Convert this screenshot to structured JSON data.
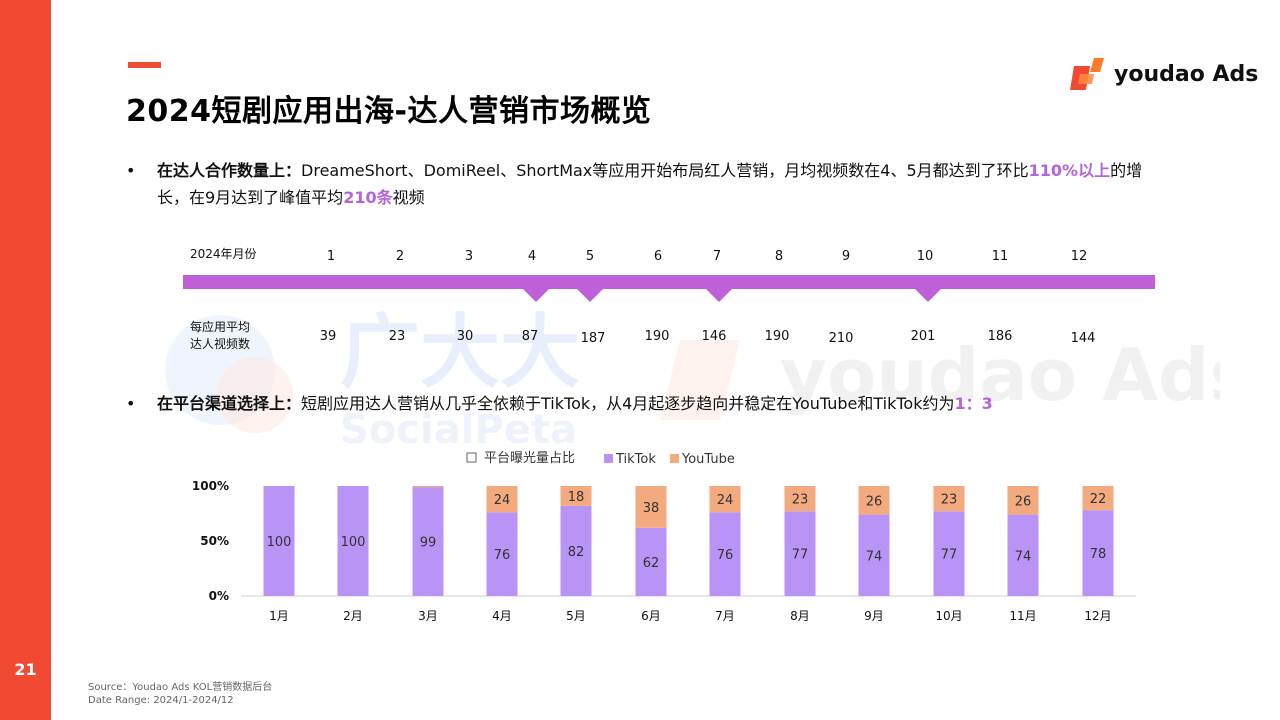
{
  "page": {
    "number": "21",
    "title": "2024短剧应用出海-达人营销市场概览",
    "brand": "youdao Ads"
  },
  "bullets": [
    {
      "lead": "在达人合作数量上：",
      "text_a": "DreameShort、DomiReel、ShortMax等应用开始布局红人营销，月均视频数在4、5月都达到了环比",
      "hl_a": "110%以上",
      "text_b": "的增长，在9月达到了峰值平均",
      "hl_b": "210条",
      "text_c": "视频"
    },
    {
      "lead": "在平台渠道选择上：",
      "text_a": "短剧应用达人营销从几乎全依赖于TikTok，从4月起逐步趋向并稳定在YouTube和TikTok约为",
      "hl_a": "1：3"
    }
  ],
  "timeline": {
    "row1_label": "2024年月份",
    "row2_label_line1": "每应用平均",
    "row2_label_line2": "达人视频数",
    "months": [
      "1",
      "2",
      "3",
      "4",
      "5",
      "6",
      "7",
      "8",
      "9",
      "10",
      "11",
      "12"
    ],
    "values": [
      "39",
      "23",
      "30",
      "87",
      "187",
      "190",
      "146",
      "190",
      "210",
      "201",
      "186",
      "144"
    ],
    "markers_at_months": [
      "4",
      "5",
      "7",
      "10"
    ],
    "bar_color": "#c060d8"
  },
  "chart_data": {
    "type": "bar",
    "stacked": true,
    "legend": [
      "平台曝光量占比",
      "TikTok",
      "YouTube"
    ],
    "categories": [
      "1月",
      "2月",
      "3月",
      "4月",
      "5月",
      "6月",
      "7月",
      "8月",
      "9月",
      "10月",
      "11月",
      "12月"
    ],
    "series": [
      {
        "name": "TikTok",
        "color": "#b794f6",
        "values": [
          100,
          100,
          99,
          76,
          82,
          62,
          76,
          77,
          74,
          77,
          74,
          78
        ]
      },
      {
        "name": "YouTube",
        "color": "#f2aa7e",
        "values": [
          0,
          0,
          1,
          24,
          18,
          38,
          24,
          23,
          26,
          23,
          26,
          22
        ]
      }
    ],
    "data_labels": {
      "TikTok": [
        "100",
        "100",
        "99",
        "76",
        "82",
        "62",
        "76",
        "77",
        "74",
        "77",
        "74",
        "78"
      ],
      "YouTube": [
        "",
        "",
        "",
        "24",
        "18",
        "38",
        "24",
        "23",
        "26",
        "23",
        "26",
        "22"
      ]
    },
    "yticks": [
      "100%",
      "50%",
      "0%"
    ],
    "ylim": [
      0,
      100
    ]
  },
  "watermark": {
    "text1": "广大大",
    "text2": "SocialPeta",
    "text3": "youdao Ads"
  },
  "source": {
    "line1": "Source：Youdao Ads KOL营销数据后台",
    "line2": "Date Range: 2024/1-2024/12"
  }
}
